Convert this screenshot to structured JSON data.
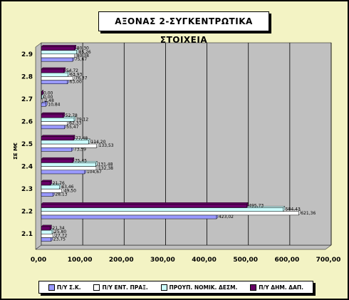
{
  "chart_data": {
    "type": "bar",
    "orientation": "horizontal",
    "title": "ΑΞΟΝΑΣ 2-ΣΥΓΚΕΝΤΡΩΤΙΚΑ ΣΤΟΙΧΕΙΑ",
    "ylabel": "ΣΕ Μ€",
    "xlabel": "",
    "categories": [
      "2.1",
      "2.2",
      "2.3",
      "2.4",
      "2.5",
      "2.6",
      "2.7",
      "2.8",
      "2.9"
    ],
    "xlim": [
      0,
      700
    ],
    "xticks": [
      "0,00",
      "100,00",
      "200,00",
      "300,00",
      "400,00",
      "500,00",
      "600,00",
      "700,00"
    ],
    "xtick_values": [
      0,
      100,
      200,
      300,
      400,
      500,
      600,
      700
    ],
    "grid": true,
    "legend_position": "bottom",
    "series": [
      {
        "name": "Π/Υ Σ.Κ.",
        "color": "#9999ff",
        "values": [
          23.75,
          423.02,
          28.13,
          104.67,
          73.59,
          55.47,
          10.84,
          63.0,
          75.67
        ],
        "labels": [
          "23,75",
          "423,02",
          "28,13",
          "104,67",
          "73,59",
          "55,47",
          "10,84",
          "63,00",
          "75,67"
        ]
      },
      {
        "name": "Π/Υ ΕΝΤ. ΠΡΑΞ.",
        "color": "#ffffff",
        "values": [
          27.72,
          621.36,
          49.5,
          132.38,
          133.53,
          62.33,
          2.48,
          76.37,
          80.38
        ],
        "labels": [
          "27,72",
          "621,36",
          "49,50",
          "132,38",
          "133,53",
          "62,33",
          "2,48",
          "76,37",
          "80,38"
        ]
      },
      {
        "name": "ΠΡΟΥΠ. ΝΟΜΙΚ. ΔΕΣΜ.",
        "color": "#ccffff",
        "values": [
          25.8,
          584.43,
          43.46,
          131.48,
          114.2,
          79.12,
          0.0,
          63.93,
          85.26
        ],
        "labels": [
          "25,80",
          "584,43",
          "43,46",
          "131,48",
          "114,20",
          "79,12",
          "0,00",
          "63,93",
          "85,26"
        ]
      },
      {
        "name": "Π/Υ ΔΗΜ. ΔΑΠ.",
        "color": "#660066",
        "values": [
          21.34,
          495.73,
          21.76,
          75.45,
          77.48,
          52.78,
          0.0,
          54.72,
          80.3
        ],
        "labels": [
          "21,34",
          "495,73",
          "21,76",
          "75,45",
          "77,48",
          "52,78",
          "0,00",
          "54,72",
          "80,30"
        ]
      }
    ]
  }
}
